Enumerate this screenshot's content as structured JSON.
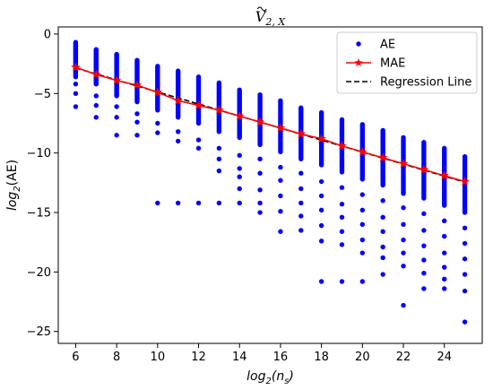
{
  "chart_data": {
    "type": "scatter",
    "title": "Ṽ₂,ₓ",
    "title_main": "V",
    "title_sub": "2, X",
    "xlabel_main": "log",
    "xlabel_sub": "2",
    "xlabel_paren": "n",
    "xlabel_paren_sub": "s",
    "ylabel_main": "log",
    "ylabel_sub": "2",
    "ylabel_paren": "(AE)",
    "xlim": [
      5.15,
      25.85
    ],
    "ylim": [
      -26.0,
      0.6
    ],
    "xticks": [
      6,
      8,
      10,
      12,
      14,
      16,
      18,
      20,
      22,
      24
    ],
    "yticks": [
      0,
      -5,
      -10,
      -15,
      -20,
      -25
    ],
    "ytick_labels": [
      "0",
      "−5",
      "−10",
      "−15",
      "−20",
      "−25"
    ],
    "grid": false,
    "legend_position": "top-right",
    "series": [
      {
        "name": "AE",
        "kind": "scatter",
        "color": "#0000ff",
        "columns": [
          {
            "x": 6,
            "top": -0.7,
            "dense_bottom": -3.6,
            "outliers": [
              -4.2,
              -5.0,
              -6.1
            ]
          },
          {
            "x": 7,
            "top": -1.3,
            "dense_bottom": -4.2,
            "outliers": [
              -5.2,
              -6.0,
              -7.0
            ]
          },
          {
            "x": 8,
            "top": -1.7,
            "dense_bottom": -5.2,
            "outliers": [
              -6.1,
              -7.0,
              -8.5
            ]
          },
          {
            "x": 9,
            "top": -2.2,
            "dense_bottom": -5.7,
            "outliers": [
              -6.7,
              -7.4,
              -8.5
            ]
          },
          {
            "x": 10,
            "top": -2.7,
            "dense_bottom": -6.4,
            "outliers": [
              -7.5,
              -8.3,
              -14.2
            ]
          },
          {
            "x": 11,
            "top": -3.1,
            "dense_bottom": -7.0,
            "outliers": [
              -8.2,
              -9.0,
              -14.2
            ]
          },
          {
            "x": 12,
            "top": -3.6,
            "dense_bottom": -7.5,
            "outliers": [
              -8.9,
              -9.6,
              -14.2
            ]
          },
          {
            "x": 13,
            "top": -4.1,
            "dense_bottom": -8.2,
            "outliers": [
              -9.6,
              -10.5,
              -11.5,
              -14.2
            ]
          },
          {
            "x": 14,
            "top": -4.7,
            "dense_bottom": -8.7,
            "outliers": [
              -10.2,
              -11.3,
              -12.0,
              -13.0,
              -14.2
            ]
          },
          {
            "x": 15,
            "top": -5.1,
            "dense_bottom": -9.3,
            "outliers": [
              -10.5,
              -11.7,
              -13.1,
              -14.2,
              -15.0
            ]
          },
          {
            "x": 16,
            "top": -5.6,
            "dense_bottom": -9.9,
            "outliers": [
              -11.2,
              -12.3,
              -13.6,
              -14.9,
              -16.6
            ]
          },
          {
            "x": 17,
            "top": -6.2,
            "dense_bottom": -10.5,
            "outliers": [
              -11.7,
              -13.0,
              -14.2,
              -15.3,
              -16.5
            ]
          },
          {
            "x": 18,
            "top": -6.6,
            "dense_bottom": -11.0,
            "outliers": [
              -12.4,
              -13.6,
              -14.8,
              -16.1,
              -17.4,
              -20.8
            ]
          },
          {
            "x": 19,
            "top": -7.2,
            "dense_bottom": -11.6,
            "outliers": [
              -12.9,
              -14.3,
              -15.4,
              -16.6,
              -17.7,
              -20.8
            ]
          },
          {
            "x": 20,
            "top": -7.6,
            "dense_bottom": -12.2,
            "outliers": [
              -13.5,
              -14.8,
              -16.0,
              -17.3,
              -18.4,
              -20.8
            ]
          },
          {
            "x": 21,
            "top": -8.1,
            "dense_bottom": -12.7,
            "outliers": [
              -14.0,
              -15.4,
              -16.6,
              -17.9,
              -18.8,
              -20.2
            ]
          },
          {
            "x": 22,
            "top": -8.7,
            "dense_bottom": -13.4,
            "outliers": [
              -14.6,
              -16.0,
              -17.3,
              -18.4,
              -19.5,
              -22.8
            ]
          },
          {
            "x": 23,
            "top": -9.1,
            "dense_bottom": -13.8,
            "outliers": [
              -15.1,
              -16.5,
              -17.8,
              -19.0,
              -20.1,
              -21.4
            ]
          },
          {
            "x": 24,
            "top": -9.6,
            "dense_bottom": -14.4,
            "outliers": [
              -15.7,
              -17.0,
              -18.4,
              -19.6,
              -20.6,
              -21.4
            ]
          },
          {
            "x": 25,
            "top": -10.3,
            "dense_bottom": -15.0,
            "outliers": [
              -16.3,
              -17.6,
              -18.9,
              -20.2,
              -21.6,
              -24.2
            ]
          }
        ]
      },
      {
        "name": "MAE",
        "kind": "line",
        "color": "#ff0000",
        "marker": "star",
        "x": [
          6,
          7,
          8,
          9,
          10,
          11,
          12,
          13,
          14,
          15,
          16,
          17,
          18,
          19,
          20,
          21,
          22,
          23,
          24,
          25
        ],
        "y": [
          -2.8,
          -3.4,
          -3.9,
          -4.3,
          -4.9,
          -5.6,
          -6.0,
          -6.4,
          -6.9,
          -7.4,
          -7.9,
          -8.4,
          -8.8,
          -9.4,
          -9.9,
          -10.4,
          -10.9,
          -11.4,
          -11.9,
          -12.4
        ]
      },
      {
        "name": "Regression Line",
        "kind": "dashed-line",
        "color": "#000000",
        "x": [
          6,
          25
        ],
        "y": [
          -2.85,
          -12.45
        ]
      }
    ]
  }
}
